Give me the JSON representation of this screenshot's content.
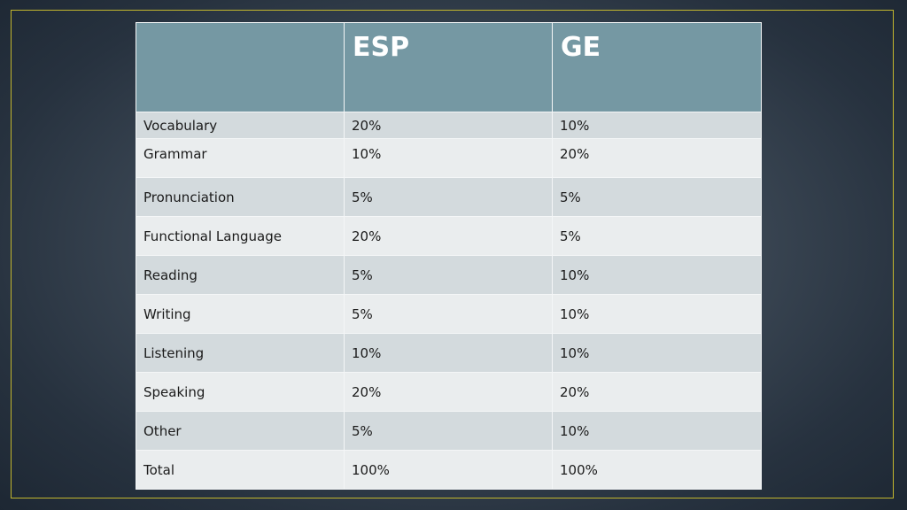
{
  "table": {
    "headers": [
      "",
      "ESP",
      "GE"
    ],
    "rows": [
      {
        "category": "Vocabulary",
        "esp": "20%",
        "ge": "10%"
      },
      {
        "category": "Grammar",
        "esp": "10%",
        "ge": "20%"
      },
      {
        "category": "Pronunciation",
        "esp": "5%",
        "ge": "5%"
      },
      {
        "category": "Functional Language",
        "esp": "20%",
        "ge": "5%"
      },
      {
        "category": "Reading",
        "esp": "5%",
        "ge": "10%"
      },
      {
        "category": "Writing",
        "esp": "5%",
        "ge": "10%"
      },
      {
        "category": "Listening",
        "esp": "10%",
        "ge": "10%"
      },
      {
        "category": "Speaking",
        "esp": "20%",
        "ge": "20%"
      },
      {
        "category": "Other",
        "esp": "5%",
        "ge": "10%"
      },
      {
        "category": "Total",
        "esp": "100%",
        "ge": "100%"
      }
    ]
  },
  "colors": {
    "header_fill": "#7598a3",
    "row_shade_a": "#d3dadd",
    "row_shade_b": "#eaedee",
    "frame_border": "#c2b62e",
    "background": "#3e4a57"
  }
}
